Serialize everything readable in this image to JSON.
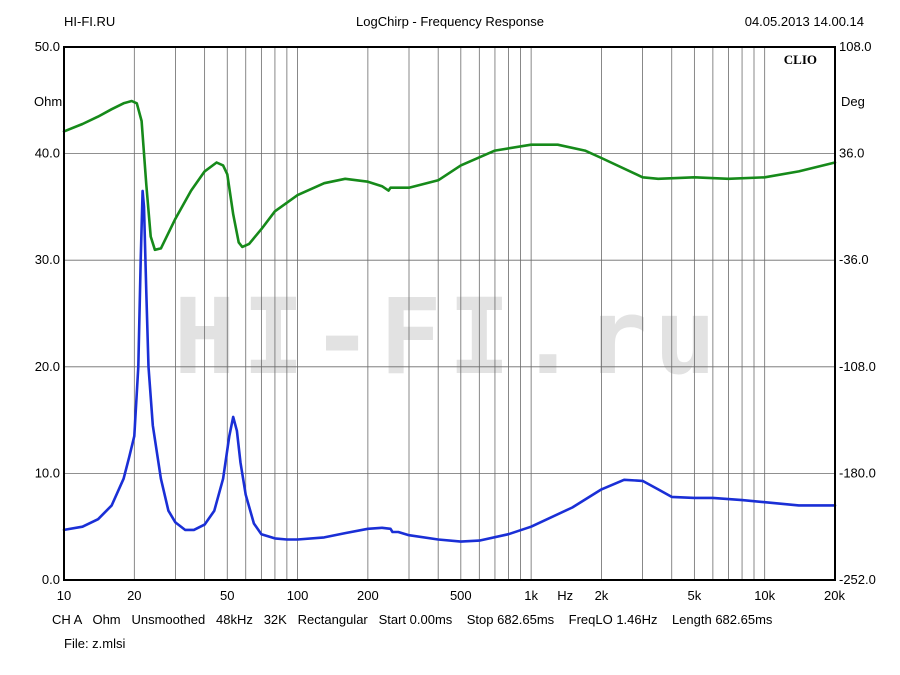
{
  "header": {
    "left": "HI-FI.RU",
    "center": "LogChirp - Frequency Response",
    "right": "04.05.2013 14.00.14"
  },
  "footer": {
    "info": "CH A   Ohm   Unsmoothed   48kHz   32K   Rectangular   Start 0.00ms    Stop 682.65ms    FreqLO 1.46Hz    Length 682.65ms",
    "file": "File: z.mlsi"
  },
  "watermark": "HI-FI.ru",
  "brand": "CLIO",
  "chart_data": {
    "type": "line",
    "title": "LogChirp - Frequency Response",
    "x_scale": "log",
    "xlim": [
      10,
      20000
    ],
    "x_ticks": [
      {
        "v": 10,
        "label": "10"
      },
      {
        "v": 20,
        "label": "20"
      },
      {
        "v": 50,
        "label": "50"
      },
      {
        "v": 100,
        "label": "100"
      },
      {
        "v": 200,
        "label": "200"
      },
      {
        "v": 500,
        "label": "500"
      },
      {
        "v": 1000,
        "label": "1k"
      },
      {
        "v": 2000,
        "label": "2k"
      },
      {
        "v": 5000,
        "label": "5k"
      },
      {
        "v": 10000,
        "label": "10k"
      },
      {
        "v": 20000,
        "label": "20k"
      }
    ],
    "x_unit": "Hz",
    "y_left": {
      "unit": "Ohm",
      "lim": [
        0,
        50
      ],
      "ticks": [
        "0.0",
        "10.0",
        "20.0",
        "30.0",
        "40.0",
        "50.0"
      ]
    },
    "y_right": {
      "unit": "Deg",
      "lim": [
        -252,
        108
      ],
      "ticks": [
        "-252.0",
        "-180.0",
        "-108.0",
        "-36.0",
        "36.0",
        "108.0"
      ]
    },
    "grid": true,
    "colors": {
      "impedance": "#1a2fd6",
      "phase": "#168a1a"
    },
    "series": [
      {
        "key": "impedance",
        "axis": "left",
        "points": [
          [
            10,
            4.7
          ],
          [
            12,
            5.0
          ],
          [
            14,
            5.7
          ],
          [
            16,
            7.0
          ],
          [
            18,
            9.5
          ],
          [
            19,
            11.5
          ],
          [
            20,
            13.5
          ],
          [
            20.8,
            20
          ],
          [
            21.3,
            30
          ],
          [
            21.7,
            36.5
          ],
          [
            22,
            35
          ],
          [
            22.5,
            27
          ],
          [
            23,
            20
          ],
          [
            24,
            14.5
          ],
          [
            26,
            9.5
          ],
          [
            28,
            6.5
          ],
          [
            30,
            5.4
          ],
          [
            33,
            4.7
          ],
          [
            36,
            4.7
          ],
          [
            40,
            5.2
          ],
          [
            44,
            6.5
          ],
          [
            48,
            9.5
          ],
          [
            51,
            13.5
          ],
          [
            53,
            15.3
          ],
          [
            55,
            14.0
          ],
          [
            57,
            11
          ],
          [
            60,
            8
          ],
          [
            65,
            5.3
          ],
          [
            70,
            4.3
          ],
          [
            80,
            3.9
          ],
          [
            90,
            3.8
          ],
          [
            100,
            3.8
          ],
          [
            130,
            4.0
          ],
          [
            160,
            4.4
          ],
          [
            200,
            4.8
          ],
          [
            230,
            4.9
          ],
          [
            250,
            4.8
          ],
          [
            255,
            4.5
          ],
          [
            270,
            4.5
          ],
          [
            300,
            4.2
          ],
          [
            400,
            3.8
          ],
          [
            500,
            3.6
          ],
          [
            600,
            3.7
          ],
          [
            800,
            4.3
          ],
          [
            1000,
            5.0
          ],
          [
            1500,
            6.8
          ],
          [
            2000,
            8.5
          ],
          [
            2500,
            9.4
          ],
          [
            3000,
            9.3
          ],
          [
            3500,
            8.5
          ],
          [
            4000,
            7.8
          ],
          [
            5000,
            7.7
          ],
          [
            6000,
            7.7
          ],
          [
            8000,
            7.5
          ],
          [
            10000,
            7.3
          ],
          [
            14000,
            7.0
          ],
          [
            20000,
            7.0
          ]
        ]
      },
      {
        "key": "phase",
        "axis": "right",
        "points": [
          [
            10,
            51
          ],
          [
            12,
            56
          ],
          [
            14,
            61
          ],
          [
            16,
            66
          ],
          [
            18,
            70
          ],
          [
            19.5,
            71.5
          ],
          [
            20.5,
            70
          ],
          [
            21.5,
            58
          ],
          [
            22.5,
            15
          ],
          [
            23.5,
            -20
          ],
          [
            24.5,
            -29
          ],
          [
            26,
            -28
          ],
          [
            30,
            -8
          ],
          [
            35,
            11
          ],
          [
            40,
            24
          ],
          [
            45,
            30
          ],
          [
            48,
            28
          ],
          [
            50,
            22
          ],
          [
            53,
            -5
          ],
          [
            56,
            -24
          ],
          [
            58,
            -27
          ],
          [
            62,
            -25
          ],
          [
            70,
            -15
          ],
          [
            80,
            -3
          ],
          [
            100,
            8
          ],
          [
            130,
            16
          ],
          [
            160,
            19
          ],
          [
            200,
            17
          ],
          [
            230,
            14
          ],
          [
            245,
            11
          ],
          [
            250,
            13
          ],
          [
            300,
            13
          ],
          [
            400,
            18
          ],
          [
            500,
            28
          ],
          [
            700,
            38
          ],
          [
            1000,
            42
          ],
          [
            1300,
            42
          ],
          [
            1700,
            38
          ],
          [
            2000,
            33
          ],
          [
            3000,
            20
          ],
          [
            3500,
            19
          ],
          [
            5000,
            20
          ],
          [
            7000,
            19
          ],
          [
            10000,
            20
          ],
          [
            14000,
            24
          ],
          [
            20000,
            30
          ]
        ]
      }
    ]
  }
}
